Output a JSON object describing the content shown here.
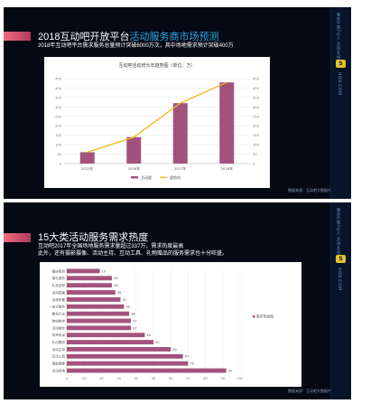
{
  "slide1": {
    "title_main": "2018互动吧开放平台",
    "title_highlight": "活动服务商市场预测",
    "subtitle": "2018年互动吧平台需求服务总量预计突破6000万次，其中场地需求预计突破400万",
    "source": "数据来源：互动吧大数据中心"
  },
  "slide2": {
    "title": "15大类活动服务需求热度",
    "subtitle_line1": "互动吧2017年全国场地服务需求量超过337万，需求热度最高",
    "subtitle_line2": "此外，还有摄影摄像、活动主持、互动工具、礼物赠品的服务需求也十分旺盛。",
    "source": "数据来源：互动吧大数据中心"
  },
  "sidebar": {
    "vertical_text": "服务中国2亿人  活动互动吧",
    "brand": "HDB.COM",
    "logo": "S"
  },
  "chart_data": [
    {
      "type": "bar",
      "title": "互动吧活动增长年趋势图（单位：万）",
      "categories": [
        "2015年",
        "2016年",
        "2017年",
        "2018年"
      ],
      "series": [
        {
          "name": "活动量",
          "values": [
            60,
            140,
            320,
            430
          ],
          "color": "#a3527e"
        },
        {
          "name": "趋势线",
          "values": [
            60,
            140,
            320,
            430
          ],
          "color": "#f4b614",
          "render": "line"
        }
      ],
      "ylim": [
        0,
        450
      ],
      "yticks": [
        0,
        50,
        100,
        150,
        200,
        250,
        300,
        350,
        400,
        450
      ],
      "grid": true,
      "legend": "bottom"
    },
    {
      "type": "bar",
      "orientation": "horizontal",
      "categories": [
        "婚庆策划",
        "婚礼服务",
        "礼品定制",
        "活动直播",
        "会场布置",
        "一站式服务",
        "舞台灯光",
        "物料制作",
        "活动餐饮",
        "同声传译",
        "礼仪模特",
        "活动主持",
        "互动工具",
        "摄影摄像",
        "活动场地"
      ],
      "series": [
        {
          "name": "需求热度值",
          "values": [
            19,
            26,
            26,
            28,
            31,
            33,
            36,
            37,
            37,
            45,
            50,
            60,
            67,
            70,
            92
          ],
          "color": "#a3527e"
        }
      ],
      "xlim": [
        0,
        100
      ],
      "xticks": [
        0,
        10,
        20,
        30,
        40,
        50,
        60,
        70,
        80,
        90,
        100
      ],
      "grid": true,
      "legend": "right"
    }
  ]
}
